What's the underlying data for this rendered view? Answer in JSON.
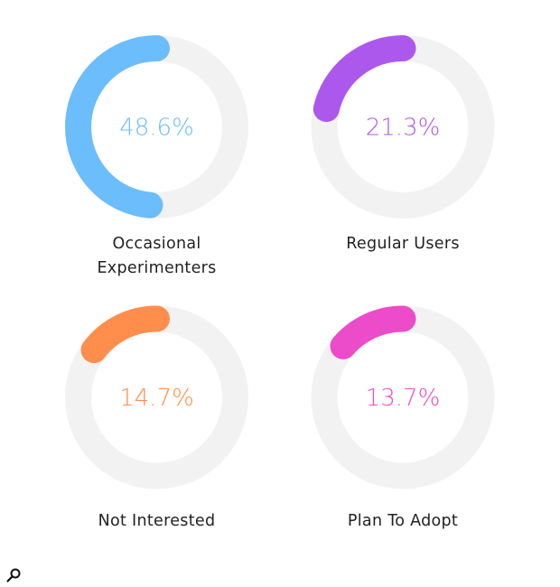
{
  "chart_data": {
    "type": "radial-progress",
    "track_color": "#F2F2F2",
    "direction": "counterclockwise",
    "start": "top",
    "items": [
      {
        "label_lines": [
          "Occasional",
          "Experimenters"
        ],
        "value": 48.6,
        "display": "48.6%",
        "color": "#6BBDFB"
      },
      {
        "label_lines": [
          "Regular Users"
        ],
        "value": 21.3,
        "display": "21.3%",
        "color": "#AD58EC"
      },
      {
        "label_lines": [
          "Not Interested"
        ],
        "value": 14.7,
        "display": "14.7%",
        "color": "#FF8E4C"
      },
      {
        "label_lines": [
          "Plan To Adopt"
        ],
        "value": 13.7,
        "display": "13.7%",
        "color": "#EC4BC9"
      }
    ]
  },
  "toolbar": {
    "zoom_icon": "magnifier-icon"
  }
}
